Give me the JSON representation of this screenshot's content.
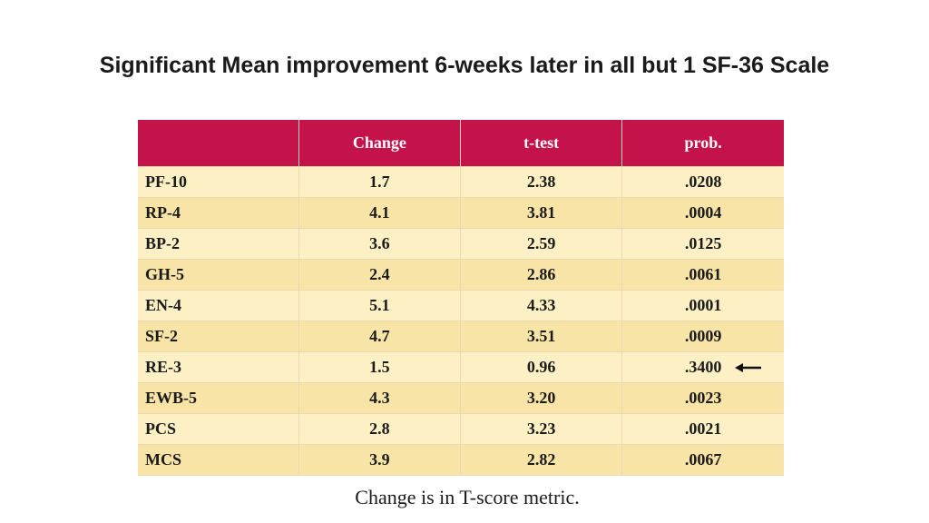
{
  "title": "Significant Mean improvement 6-weeks later in all but 1 SF-36 Scale",
  "table": {
    "headers": [
      "",
      "Change",
      "t-test",
      "prob."
    ],
    "rows": [
      {
        "scale": "PF-10",
        "change": "1.7",
        "ttest": "2.38",
        "prob": ".0208"
      },
      {
        "scale": "RP-4",
        "change": "4.1",
        "ttest": "3.81",
        "prob": ".0004"
      },
      {
        "scale": "BP-2",
        "change": "3.6",
        "ttest": "2.59",
        "prob": ".0125"
      },
      {
        "scale": "GH-5",
        "change": "2.4",
        "ttest": "2.86",
        "prob": ".0061"
      },
      {
        "scale": "EN-4",
        "change": "5.1",
        "ttest": "4.33",
        "prob": ".0001"
      },
      {
        "scale": "SF-2",
        "change": "4.7",
        "ttest": "3.51",
        "prob": ".0009"
      },
      {
        "scale": "RE-3",
        "change": "1.5",
        "ttest": "0.96",
        "prob": ".3400"
      },
      {
        "scale": "EWB-5",
        "change": "4.3",
        "ttest": "3.20",
        "prob": ".0023"
      },
      {
        "scale": "PCS",
        "change": "2.8",
        "ttest": "3.23",
        "prob": ".0021"
      },
      {
        "scale": "MCS",
        "change": "3.9",
        "ttest": "2.82",
        "prob": ".0067"
      }
    ],
    "highlighted_row": 6,
    "highlight_icon": "left-arrow-icon"
  },
  "footnote": "Change is in T-score metric.",
  "colors": {
    "header_bg": "#c4124a",
    "row_light": "#fcf0c4",
    "row_dark": "#f8e4a6"
  }
}
